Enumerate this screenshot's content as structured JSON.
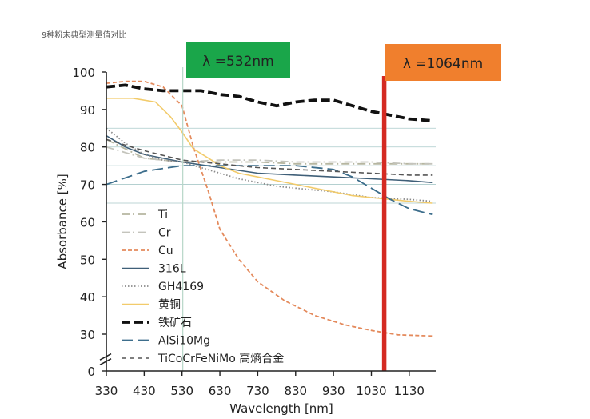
{
  "chart_data": {
    "type": "line",
    "title": "9种粉末典型测量值对比",
    "xlabel": "Wavelength [nm]",
    "ylabel": "Absorbance [%]",
    "xlim": [
      330,
      1200
    ],
    "ylim": [
      0,
      100
    ],
    "y_axis_break": "between 0 and 30",
    "x_ticks": [
      330,
      430,
      530,
      630,
      730,
      830,
      930,
      1030,
      1130
    ],
    "y_ticks": [
      0,
      30,
      40,
      50,
      60,
      70,
      80,
      90,
      100
    ],
    "grid": "horizontal lines at 65, 70, 75, 80, 85",
    "legend_position": "inside, lower-left",
    "annotations": [
      {
        "text": "λ =532nm",
        "x": 532,
        "color": "#1aa64a"
      },
      {
        "text": "λ =1064nm",
        "x": 1064,
        "color": "#f07f2d"
      }
    ],
    "series": [
      {
        "name": "Ti",
        "color": "#b6b6a0",
        "dash": "dashdot",
        "points": [
          [
            330,
            82
          ],
          [
            430,
            77
          ],
          [
            530,
            76
          ],
          [
            630,
            76
          ],
          [
            730,
            76
          ],
          [
            830,
            75.5
          ],
          [
            930,
            75.5
          ],
          [
            1030,
            75.5
          ],
          [
            1130,
            75.5
          ],
          [
            1190,
            75.5
          ]
        ]
      },
      {
        "name": "Cr",
        "color": "#c4c4bc",
        "dash": "dashdot",
        "points": [
          [
            330,
            80
          ],
          [
            430,
            77
          ],
          [
            530,
            76
          ],
          [
            630,
            76.5
          ],
          [
            730,
            76.5
          ],
          [
            830,
            76
          ],
          [
            930,
            76
          ],
          [
            1030,
            76
          ],
          [
            1130,
            75.5
          ],
          [
            1190,
            75.5
          ]
        ]
      },
      {
        "name": "Cu",
        "color": "#e48a5c",
        "dash": "dashed",
        "points": [
          [
            330,
            97
          ],
          [
            380,
            97.5
          ],
          [
            430,
            97.5
          ],
          [
            480,
            96
          ],
          [
            530,
            91
          ],
          [
            560,
            80
          ],
          [
            600,
            68
          ],
          [
            630,
            58
          ],
          [
            680,
            50
          ],
          [
            730,
            44
          ],
          [
            800,
            39
          ],
          [
            880,
            35
          ],
          [
            960,
            32.5
          ],
          [
            1030,
            31
          ],
          [
            1100,
            29.5
          ],
          [
            1190,
            28.5
          ]
        ]
      },
      {
        "name": "316L",
        "color": "#3f5f78",
        "dash": "solid",
        "points": [
          [
            330,
            83
          ],
          [
            380,
            80
          ],
          [
            430,
            78
          ],
          [
            530,
            76
          ],
          [
            630,
            74.5
          ],
          [
            730,
            73
          ],
          [
            830,
            72.5
          ],
          [
            930,
            72
          ],
          [
            1030,
            71.5
          ],
          [
            1130,
            71
          ],
          [
            1190,
            70.5
          ]
        ]
      },
      {
        "name": "GH4169",
        "color": "#8c8c8c",
        "dash": "dotted",
        "points": [
          [
            330,
            85
          ],
          [
            380,
            81
          ],
          [
            430,
            78
          ],
          [
            480,
            76.5
          ],
          [
            530,
            76
          ],
          [
            580,
            74.5
          ],
          [
            630,
            73
          ],
          [
            680,
            71.5
          ],
          [
            730,
            70.5
          ],
          [
            780,
            69.5
          ],
          [
            830,
            69
          ],
          [
            930,
            68
          ],
          [
            1030,
            66.5
          ],
          [
            1130,
            66
          ],
          [
            1190,
            65.5
          ]
        ]
      },
      {
        "name": "黄铜",
        "color": "#f2cb6b",
        "dash": "solid",
        "points": [
          [
            330,
            93
          ],
          [
            400,
            93
          ],
          [
            460,
            92
          ],
          [
            500,
            88
          ],
          [
            530,
            84
          ],
          [
            560,
            79.5
          ],
          [
            600,
            77
          ],
          [
            630,
            75
          ],
          [
            680,
            73
          ],
          [
            730,
            72
          ],
          [
            780,
            71
          ],
          [
            830,
            70
          ],
          [
            880,
            69
          ],
          [
            930,
            68
          ],
          [
            980,
            67
          ],
          [
            1030,
            66.5
          ],
          [
            1080,
            66
          ],
          [
            1130,
            65.5
          ],
          [
            1190,
            65
          ]
        ]
      },
      {
        "name": "铁矿石",
        "color": "#111111",
        "dash": "heavy-dash",
        "points": [
          [
            330,
            96
          ],
          [
            380,
            96.5
          ],
          [
            430,
            95.5
          ],
          [
            480,
            95
          ],
          [
            530,
            95
          ],
          [
            580,
            95
          ],
          [
            630,
            94
          ],
          [
            680,
            93.5
          ],
          [
            730,
            92
          ],
          [
            780,
            91
          ],
          [
            830,
            92
          ],
          [
            880,
            92.5
          ],
          [
            930,
            92.5
          ],
          [
            980,
            91
          ],
          [
            1030,
            89.5
          ],
          [
            1080,
            88.5
          ],
          [
            1130,
            87.5
          ],
          [
            1190,
            87
          ]
        ]
      },
      {
        "name": "AlSi10Mg",
        "color": "#3d6e8c",
        "dash": "longdash",
        "points": [
          [
            330,
            70
          ],
          [
            430,
            73.5
          ],
          [
            530,
            75
          ],
          [
            630,
            75
          ],
          [
            730,
            75
          ],
          [
            830,
            75
          ],
          [
            930,
            74
          ],
          [
            980,
            72
          ],
          [
            1030,
            69
          ],
          [
            1080,
            66
          ],
          [
            1130,
            63.5
          ],
          [
            1190,
            62
          ]
        ]
      },
      {
        "name": "TiCoCrFeNiMo 高熵合金",
        "color": "#555555",
        "dash": "shortdash",
        "points": [
          [
            330,
            82
          ],
          [
            430,
            79
          ],
          [
            530,
            76.5
          ],
          [
            630,
            75.5
          ],
          [
            730,
            74.5
          ],
          [
            830,
            74
          ],
          [
            930,
            73.5
          ],
          [
            1030,
            73
          ],
          [
            1130,
            72.5
          ],
          [
            1190,
            72.5
          ]
        ]
      }
    ]
  }
}
